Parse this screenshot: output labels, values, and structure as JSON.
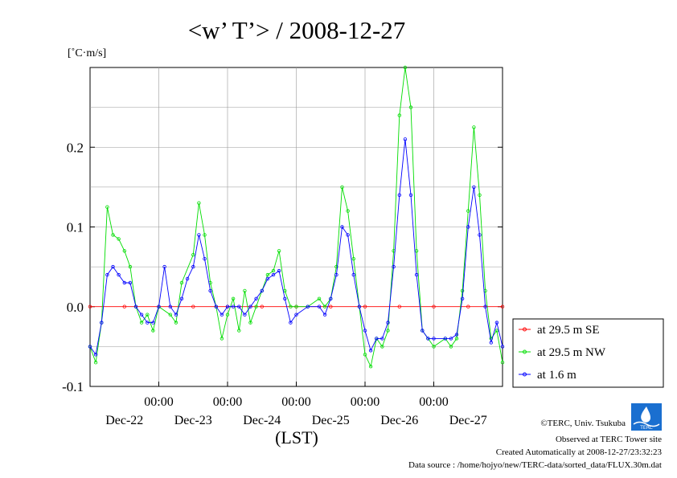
{
  "chart_data": {
    "type": "line",
    "title": "<w’ T’> / 2008-12-27",
    "ylabel": "[˚C·m/s]",
    "xlabel": "(LST)",
    "x_start_hours": 0,
    "x_end_hours": 144,
    "ylim": [
      -0.1,
      0.3
    ],
    "yticks": [
      {
        "value": -0.1,
        "label": "-0.1"
      },
      {
        "value": 0.0,
        "label": "0.0"
      },
      {
        "value": 0.1,
        "label": "0.1"
      },
      {
        "value": 0.2,
        "label": "0.2"
      }
    ],
    "xticks": [
      {
        "hours": 24,
        "time": "00:00",
        "date": "Dec-22"
      },
      {
        "hours": 48,
        "time": "00:00",
        "date": "Dec-23"
      },
      {
        "hours": 72,
        "time": "00:00",
        "date": "Dec-24"
      },
      {
        "hours": 96,
        "time": "00:00",
        "date": "Dec-25"
      },
      {
        "hours": 120,
        "time": "00:00",
        "date": "Dec-26"
      }
    ],
    "x_extra_date_labels": [
      {
        "hours": 132,
        "date": "Dec-27"
      }
    ],
    "grid": true,
    "legend_position": "right",
    "series": [
      {
        "name": "at 29.5 m SE",
        "color": "#ff0000",
        "points": [
          [
            0,
            0.0
          ],
          [
            12,
            0.0
          ],
          [
            24,
            0.0
          ],
          [
            36,
            0.0
          ],
          [
            48,
            0.0
          ],
          [
            60,
            0.0
          ],
          [
            72,
            0.0
          ],
          [
            84,
            0.0
          ],
          [
            96,
            0.0
          ],
          [
            108,
            0.0
          ],
          [
            120,
            0.0
          ],
          [
            132,
            0.0
          ],
          [
            144,
            0.0
          ]
        ]
      },
      {
        "name": "at 29.5 m NW",
        "color": "#00dd00",
        "points": [
          [
            0,
            -0.05
          ],
          [
            2,
            -0.07
          ],
          [
            4,
            -0.02
          ],
          [
            6,
            0.125
          ],
          [
            8,
            0.09
          ],
          [
            10,
            0.085
          ],
          [
            12,
            0.07
          ],
          [
            14,
            0.05
          ],
          [
            16,
            0.0
          ],
          [
            18,
            -0.02
          ],
          [
            20,
            -0.01
          ],
          [
            22,
            -0.03
          ],
          [
            24,
            0.0
          ],
          [
            28,
            -0.01
          ],
          [
            30,
            -0.02
          ],
          [
            32,
            0.03
          ],
          [
            36,
            0.065
          ],
          [
            38,
            0.13
          ],
          [
            40,
            0.09
          ],
          [
            42,
            0.03
          ],
          [
            44,
            0.0
          ],
          [
            46,
            -0.04
          ],
          [
            48,
            -0.01
          ],
          [
            50,
            0.01
          ],
          [
            52,
            -0.03
          ],
          [
            54,
            0.02
          ],
          [
            56,
            -0.02
          ],
          [
            58,
            0.0
          ],
          [
            60,
            0.02
          ],
          [
            62,
            0.04
          ],
          [
            64,
            0.045
          ],
          [
            66,
            0.07
          ],
          [
            68,
            0.02
          ],
          [
            70,
            0.0
          ],
          [
            72,
            0.0
          ],
          [
            76,
            0.0
          ],
          [
            80,
            0.01
          ],
          [
            82,
            0.0
          ],
          [
            84,
            0.01
          ],
          [
            86,
            0.05
          ],
          [
            88,
            0.15
          ],
          [
            90,
            0.12
          ],
          [
            92,
            0.06
          ],
          [
            94,
            0.0
          ],
          [
            96,
            -0.06
          ],
          [
            98,
            -0.075
          ],
          [
            100,
            -0.04
          ],
          [
            102,
            -0.05
          ],
          [
            104,
            -0.03
          ],
          [
            106,
            0.07
          ],
          [
            108,
            0.24
          ],
          [
            110,
            0.3
          ],
          [
            112,
            0.25
          ],
          [
            114,
            0.07
          ],
          [
            116,
            -0.03
          ],
          [
            118,
            -0.04
          ],
          [
            120,
            -0.05
          ],
          [
            124,
            -0.04
          ],
          [
            126,
            -0.05
          ],
          [
            128,
            -0.04
          ],
          [
            130,
            0.02
          ],
          [
            132,
            0.12
          ],
          [
            134,
            0.225
          ],
          [
            136,
            0.14
          ],
          [
            138,
            0.02
          ],
          [
            140,
            -0.04
          ],
          [
            142,
            -0.03
          ],
          [
            144,
            -0.07
          ]
        ]
      },
      {
        "name": "at 1.6 m",
        "color": "#0000ff",
        "points": [
          [
            0,
            -0.05
          ],
          [
            2,
            -0.06
          ],
          [
            4,
            -0.02
          ],
          [
            6,
            0.04
          ],
          [
            8,
            0.05
          ],
          [
            10,
            0.04
          ],
          [
            12,
            0.03
          ],
          [
            14,
            0.03
          ],
          [
            16,
            0.0
          ],
          [
            18,
            -0.01
          ],
          [
            20,
            -0.02
          ],
          [
            22,
            -0.02
          ],
          [
            24,
            0.0
          ],
          [
            26,
            0.05
          ],
          [
            28,
            0.0
          ],
          [
            30,
            -0.01
          ],
          [
            32,
            0.01
          ],
          [
            34,
            0.035
          ],
          [
            36,
            0.05
          ],
          [
            38,
            0.09
          ],
          [
            40,
            0.06
          ],
          [
            42,
            0.02
          ],
          [
            44,
            0.0
          ],
          [
            46,
            -0.01
          ],
          [
            48,
            0.0
          ],
          [
            50,
            0.0
          ],
          [
            52,
            0.0
          ],
          [
            54,
            -0.01
          ],
          [
            56,
            0.0
          ],
          [
            58,
            0.01
          ],
          [
            60,
            0.02
          ],
          [
            62,
            0.035
          ],
          [
            64,
            0.04
          ],
          [
            66,
            0.045
          ],
          [
            68,
            0.01
          ],
          [
            70,
            -0.02
          ],
          [
            72,
            -0.01
          ],
          [
            76,
            0.0
          ],
          [
            80,
            0.0
          ],
          [
            82,
            -0.01
          ],
          [
            84,
            0.01
          ],
          [
            86,
            0.04
          ],
          [
            88,
            0.1
          ],
          [
            90,
            0.09
          ],
          [
            92,
            0.04
          ],
          [
            94,
            0.0
          ],
          [
            96,
            -0.03
          ],
          [
            98,
            -0.055
          ],
          [
            100,
            -0.04
          ],
          [
            102,
            -0.04
          ],
          [
            104,
            -0.02
          ],
          [
            106,
            0.05
          ],
          [
            108,
            0.14
          ],
          [
            110,
            0.21
          ],
          [
            112,
            0.14
          ],
          [
            114,
            0.04
          ],
          [
            116,
            -0.03
          ],
          [
            118,
            -0.04
          ],
          [
            120,
            -0.04
          ],
          [
            124,
            -0.04
          ],
          [
            126,
            -0.04
          ],
          [
            128,
            -0.035
          ],
          [
            130,
            0.01
          ],
          [
            132,
            0.1
          ],
          [
            134,
            0.15
          ],
          [
            136,
            0.09
          ],
          [
            138,
            0.0
          ],
          [
            140,
            -0.045
          ],
          [
            142,
            -0.02
          ],
          [
            144,
            -0.05
          ]
        ]
      }
    ]
  },
  "credits": {
    "copyright": "©TERC, Univ. Tsukuba",
    "observed": "Observed at TERC Tower site",
    "created": "Created Automatically at 2008-12-27/23:32:23",
    "source": "Data source : /home/hojyo/new/TERC-data/sorted_data/FLUX.30m.dat",
    "logo_text": "TERC"
  }
}
